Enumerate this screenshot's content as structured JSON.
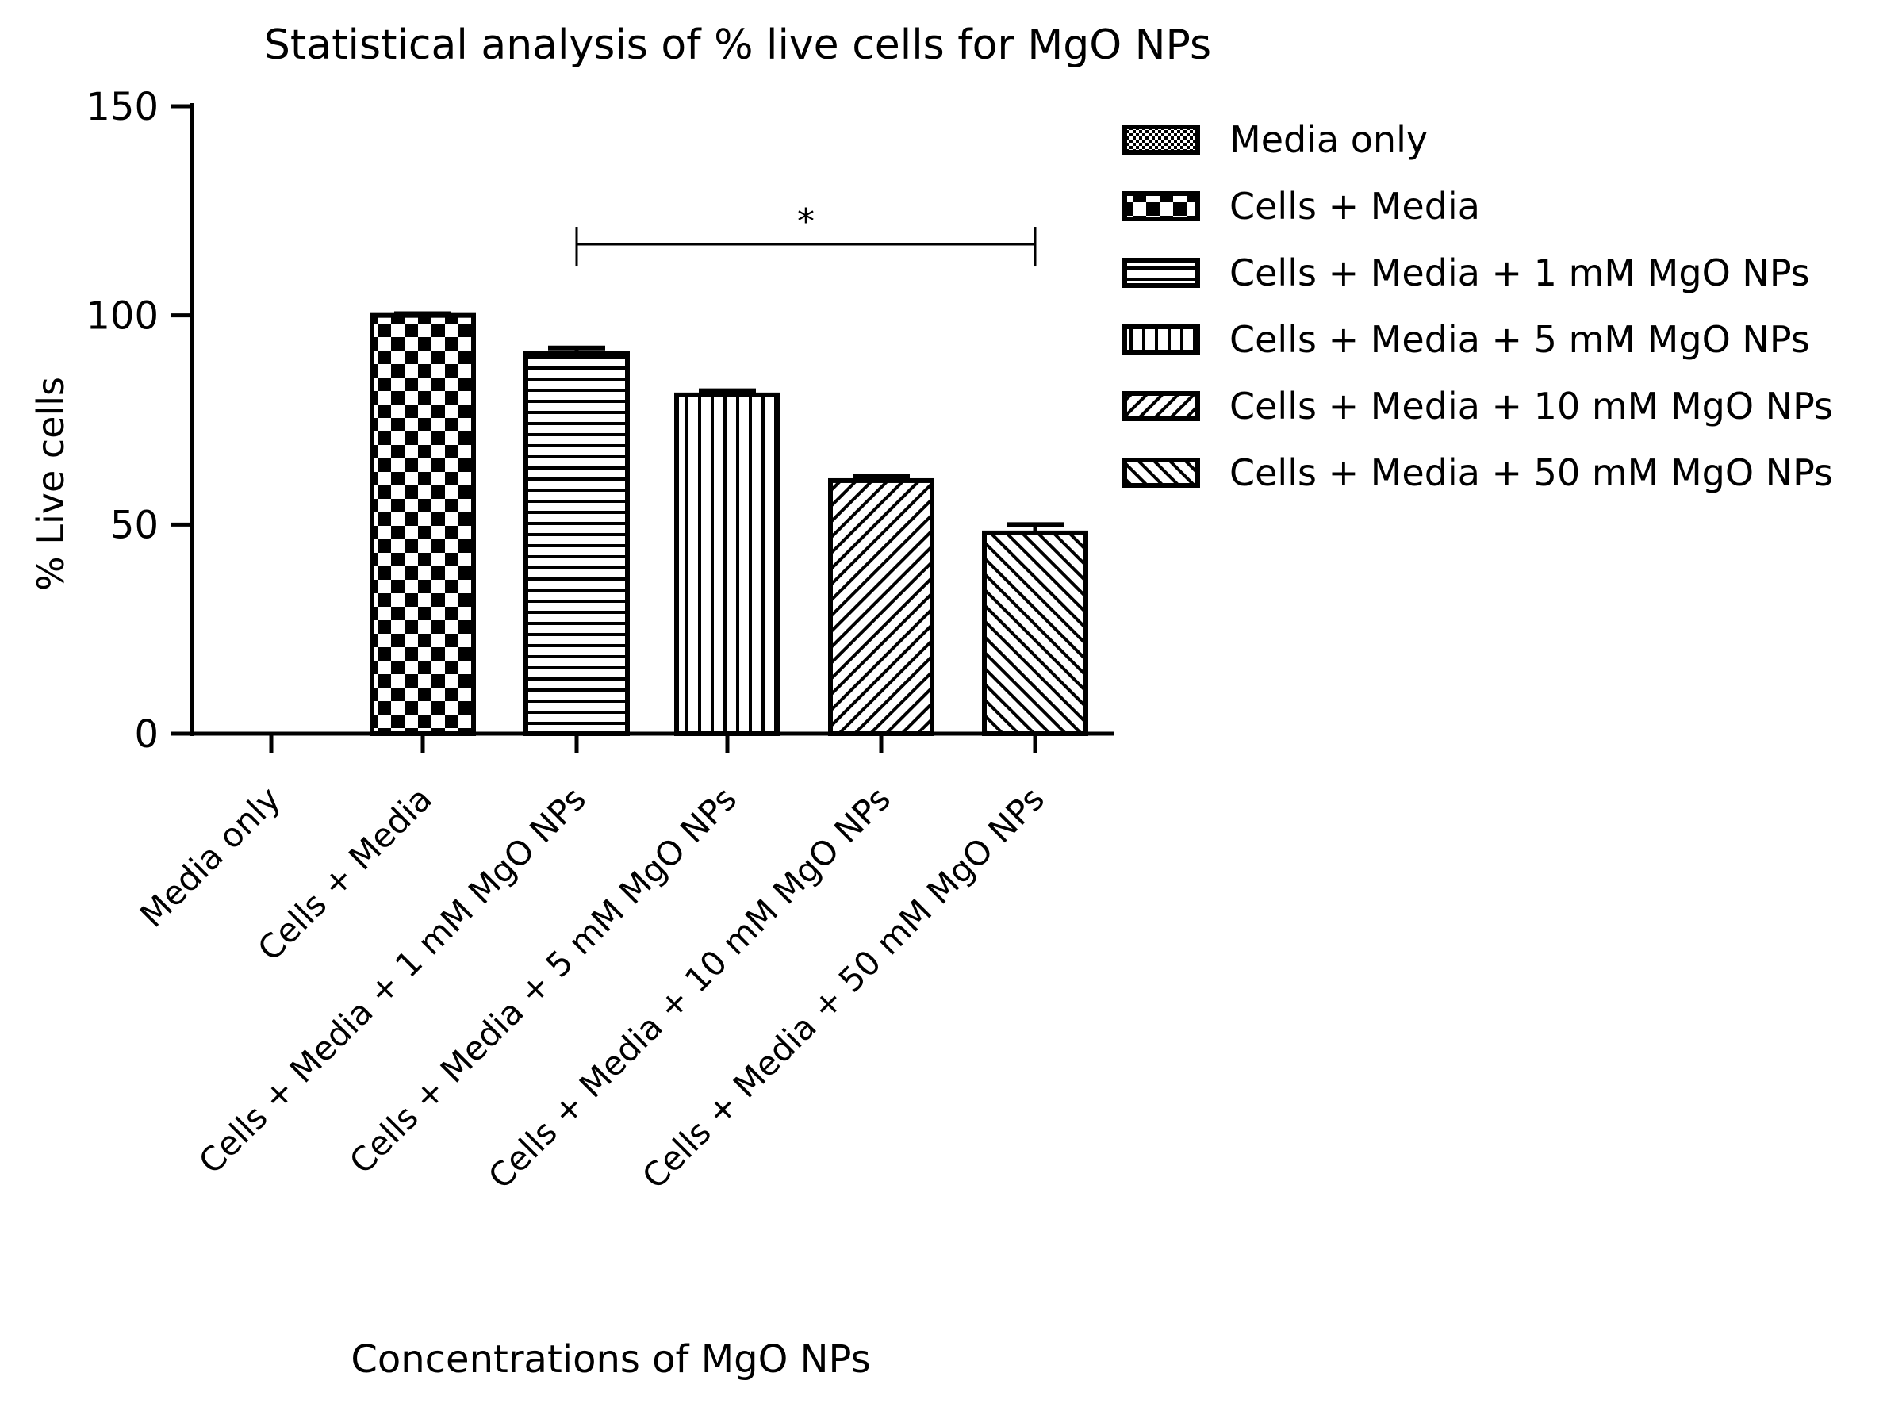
{
  "chart_data": {
    "type": "bar",
    "title": "Statistical analysis of % live cells for MgO NPs",
    "xlabel": "Concentrations of MgO NPs",
    "ylabel": "% Live cells",
    "ylim": [
      0,
      150
    ],
    "yticks": [
      0,
      50,
      100,
      150
    ],
    "categories": [
      "Media only",
      "Cells + Media",
      "Cells + Media + 1 mM MgO NPs",
      "Cells + Media + 5 mM MgO NPs",
      "Cells + Media + 10 mM MgO NPs",
      "Cells + Media + 50 mM MgO NPs"
    ],
    "values": [
      0,
      100,
      91,
      81,
      60.5,
      48
    ],
    "errors": [
      0,
      0.4,
      1.2,
      1.0,
      1.0,
      2.0
    ],
    "patterns": [
      "fine-check",
      "checker",
      "horizontal",
      "vertical",
      "diag-right",
      "diag-left"
    ],
    "legend": {
      "position": "right",
      "entries": [
        "Media only",
        "Cells + Media",
        "Cells + Media + 1 mM MgO NPs",
        "Cells + Media + 5 mM MgO NPs",
        "Cells + Media + 10 mM MgO NPs",
        "Cells + Media + 50 mM MgO NPs"
      ]
    },
    "annotations": [
      {
        "type": "significance",
        "label": "*",
        "from_category": 2,
        "to_category": 5,
        "y": 117
      }
    ],
    "colors": {
      "bar_stroke": "#000000",
      "background": "#ffffff"
    }
  }
}
